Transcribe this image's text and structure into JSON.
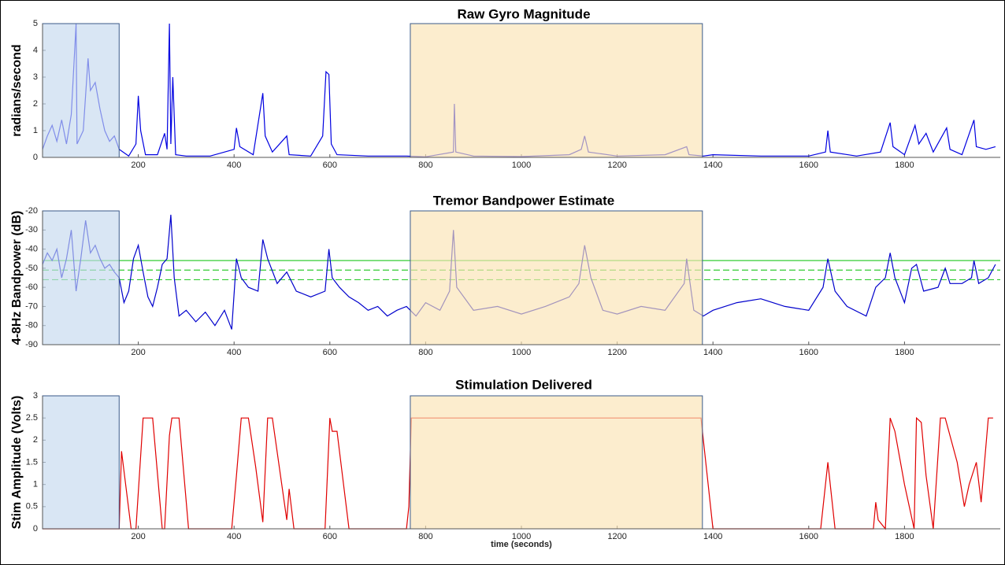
{
  "chart_data": [
    {
      "type": "line",
      "title": "Raw Gyro Magnitude",
      "y_label": "radians/second",
      "xlim": [
        0,
        2000
      ],
      "xticks": [
        200,
        400,
        600,
        800,
        1000,
        1200,
        1400,
        1600,
        1800
      ],
      "ylim": [
        0,
        5
      ],
      "yticks": [
        0,
        1,
        2,
        3,
        4,
        5
      ],
      "regions": [
        {
          "start": 0,
          "end": 160,
          "color": "#c5d9ee"
        },
        {
          "start": 768,
          "end": 1378,
          "color": "#fbe4b4"
        }
      ],
      "series": [
        {
          "color": "#0000e0",
          "x": [
            0,
            10,
            20,
            30,
            40,
            50,
            60,
            70,
            72,
            85,
            95,
            100,
            110,
            120,
            130,
            140,
            150,
            160,
            180,
            195,
            200,
            205,
            215,
            240,
            255,
            260,
            265,
            268,
            272,
            278,
            300,
            350,
            400,
            405,
            412,
            440,
            460,
            465,
            480,
            510,
            515,
            560,
            585,
            592,
            598,
            603,
            615,
            680,
            760,
            800,
            858,
            860,
            863,
            900,
            1000,
            1100,
            1125,
            1132,
            1140,
            1200,
            1300,
            1345,
            1350,
            1380,
            1400,
            1500,
            1600,
            1635,
            1640,
            1645,
            1700,
            1750,
            1770,
            1776,
            1800,
            1822,
            1830,
            1845,
            1860,
            1888,
            1895,
            1920,
            1945,
            1950,
            1970,
            1990
          ],
          "values": [
            0.3,
            0.8,
            1.2,
            0.6,
            1.4,
            0.5,
            1.6,
            5.0,
            0.5,
            1.0,
            3.7,
            2.5,
            2.8,
            1.8,
            1.0,
            0.6,
            0.8,
            0.3,
            0.05,
            0.5,
            2.3,
            1.0,
            0.1,
            0.1,
            0.9,
            0.3,
            5.0,
            0.5,
            3.0,
            0.1,
            0.05,
            0.05,
            0.3,
            1.1,
            0.4,
            0.1,
            2.4,
            0.8,
            0.2,
            0.8,
            0.1,
            0.05,
            0.8,
            3.2,
            3.1,
            0.5,
            0.1,
            0.05,
            0.05,
            0.02,
            0.2,
            2.0,
            0.2,
            0.05,
            0.03,
            0.1,
            0.3,
            0.8,
            0.2,
            0.05,
            0.1,
            0.4,
            0.1,
            0.05,
            0.1,
            0.05,
            0.05,
            0.2,
            1.0,
            0.2,
            0.05,
            0.2,
            1.3,
            0.4,
            0.1,
            1.2,
            0.5,
            0.9,
            0.2,
            1.1,
            0.3,
            0.1,
            1.4,
            0.4,
            0.3,
            0.4
          ]
        }
      ]
    },
    {
      "type": "line",
      "title": "Tremor Bandpower Estimate",
      "y_label": "4-8Hz Bandpower (dB)",
      "xlim": [
        0,
        2000
      ],
      "xticks": [
        200,
        400,
        600,
        800,
        1000,
        1200,
        1400,
        1600,
        1800
      ],
      "ylim": [
        -90,
        -20
      ],
      "yticks": [
        -90,
        -80,
        -70,
        -60,
        -50,
        -40,
        -30,
        -20
      ],
      "regions": [
        {
          "start": 0,
          "end": 160,
          "color": "#c5d9ee"
        },
        {
          "start": 768,
          "end": 1378,
          "color": "#fbe4b4"
        }
      ],
      "hlines": [
        {
          "value": -46,
          "dash": false,
          "color": "#33cc33"
        },
        {
          "value": -51,
          "dash": true,
          "color": "#33cc33"
        },
        {
          "value": -56,
          "dash": true,
          "color": "#33cc33"
        }
      ],
      "series": [
        {
          "color": "#0000cc",
          "x": [
            0,
            10,
            20,
            30,
            40,
            50,
            60,
            70,
            80,
            90,
            100,
            110,
            120,
            130,
            140,
            150,
            160,
            170,
            180,
            190,
            200,
            210,
            220,
            230,
            240,
            250,
            260,
            268,
            275,
            285,
            300,
            320,
            340,
            360,
            380,
            395,
            405,
            415,
            430,
            450,
            460,
            470,
            490,
            510,
            530,
            560,
            590,
            598,
            605,
            620,
            640,
            660,
            680,
            700,
            720,
            740,
            760,
            780,
            800,
            830,
            850,
            858,
            865,
            900,
            950,
            1000,
            1050,
            1100,
            1120,
            1132,
            1145,
            1170,
            1200,
            1250,
            1300,
            1340,
            1345,
            1360,
            1380,
            1400,
            1450,
            1500,
            1550,
            1600,
            1630,
            1640,
            1655,
            1680,
            1720,
            1740,
            1760,
            1770,
            1780,
            1800,
            1815,
            1825,
            1840,
            1870,
            1885,
            1895,
            1920,
            1940,
            1945,
            1955,
            1975,
            1990
          ],
          "values": [
            -48,
            -42,
            -46,
            -40,
            -55,
            -45,
            -30,
            -62,
            -45,
            -25,
            -42,
            -38,
            -45,
            -50,
            -48,
            -52,
            -55,
            -68,
            -62,
            -45,
            -38,
            -52,
            -65,
            -70,
            -60,
            -48,
            -45,
            -22,
            -55,
            -75,
            -72,
            -78,
            -73,
            -80,
            -72,
            -82,
            -45,
            -55,
            -60,
            -62,
            -35,
            -45,
            -58,
            -52,
            -62,
            -65,
            -62,
            -40,
            -55,
            -60,
            -65,
            -68,
            -72,
            -70,
            -75,
            -72,
            -70,
            -75,
            -68,
            -72,
            -62,
            -30,
            -60,
            -72,
            -70,
            -74,
            -70,
            -65,
            -58,
            -38,
            -55,
            -72,
            -74,
            -70,
            -72,
            -58,
            -45,
            -72,
            -75,
            -72,
            -68,
            -66,
            -70,
            -72,
            -60,
            -45,
            -62,
            -70,
            -75,
            -60,
            -55,
            -42,
            -55,
            -68,
            -50,
            -48,
            -62,
            -60,
            -50,
            -58,
            -58,
            -55,
            -46,
            -58,
            -55,
            -48
          ]
        }
      ]
    },
    {
      "type": "line",
      "title": "Stimulation Delivered",
      "y_label": "Stim Amplitude (Volts)",
      "x_label": "time (seconds)",
      "xlim": [
        0,
        2000
      ],
      "xticks": [
        200,
        400,
        600,
        800,
        1000,
        1200,
        1400,
        1600,
        1800
      ],
      "ylim": [
        0,
        3
      ],
      "yticks": [
        0,
        0.5,
        1,
        1.5,
        2,
        2.5,
        3
      ],
      "regions": [
        {
          "start": 0,
          "end": 160,
          "color": "#c5d9ee"
        },
        {
          "start": 768,
          "end": 1378,
          "color": "#fbe4b4"
        }
      ],
      "series": [
        {
          "color": "#e00000",
          "x": [
            0,
            160,
            165,
            185,
            195,
            210,
            230,
            250,
            255,
            265,
            270,
            285,
            305,
            395,
            405,
            415,
            430,
            445,
            460,
            470,
            480,
            510,
            515,
            525,
            590,
            600,
            605,
            615,
            640,
            760,
            765,
            770,
            1375,
            1400,
            1625,
            1640,
            1655,
            1735,
            1740,
            1745,
            1760,
            1770,
            1780,
            1800,
            1820,
            1825,
            1835,
            1845,
            1860,
            1875,
            1885,
            1910,
            1925,
            1935,
            1950,
            1960,
            1975,
            1985
          ],
          "values": [
            0,
            0,
            1.75,
            0,
            0,
            2.5,
            2.5,
            0,
            0,
            2.1,
            2.5,
            2.5,
            0,
            0,
            1.2,
            2.5,
            2.5,
            1.4,
            0.15,
            2.5,
            2.5,
            0.2,
            0.9,
            0,
            0,
            2.5,
            2.2,
            2.2,
            0,
            0,
            0.5,
            2.5,
            2.5,
            0,
            0,
            1.5,
            0,
            0,
            0.6,
            0.2,
            0,
            2.5,
            2.2,
            1.0,
            0,
            2.5,
            2.4,
            1.2,
            0,
            2.5,
            2.5,
            1.5,
            0.5,
            1.0,
            1.5,
            0.6,
            2.5,
            2.5
          ]
        }
      ]
    }
  ]
}
